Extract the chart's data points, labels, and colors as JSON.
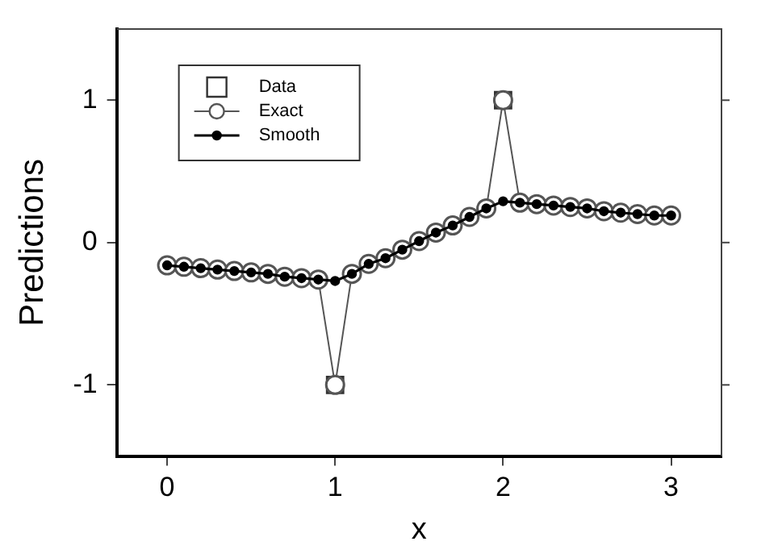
{
  "chart_data": {
    "type": "line",
    "xlabel": "x",
    "ylabel": "Predictions",
    "xlim": [
      -0.3,
      3.3
    ],
    "xticks": [
      0,
      1,
      2,
      3
    ],
    "ylim": [
      -1.5,
      1.5
    ],
    "yticks": [
      -1,
      0,
      1
    ],
    "grid": false,
    "legend": "top left",
    "x": [
      0,
      0.1,
      0.2,
      0.3,
      0.4,
      0.5,
      0.6,
      0.7,
      0.8,
      0.9,
      1,
      1.1,
      1.2,
      1.3,
      1.4,
      1.5,
      1.6,
      1.7,
      1.8,
      1.9,
      2,
      2.1,
      2.2,
      2.3,
      2.4,
      2.5,
      2.6,
      2.7,
      2.8,
      2.9,
      3
    ],
    "series": [
      {
        "name": "Data",
        "type": "scatter",
        "color": "#333333",
        "marker": "square",
        "x": [
          1,
          2
        ],
        "values": [
          -1,
          1
        ]
      },
      {
        "name": "Exact",
        "color": "#555555",
        "marker": "circle",
        "line_style": "solid",
        "values": [
          -0.16,
          -0.17,
          -0.18,
          -0.19,
          -0.2,
          -0.21,
          -0.22,
          -0.24,
          -0.25,
          -0.26,
          -1,
          -0.22,
          -0.15,
          -0.11,
          -0.05,
          0.01,
          0.07,
          0.12,
          0.18,
          0.24,
          1,
          0.28,
          0.27,
          0.26,
          0.25,
          0.24,
          0.22,
          0.21,
          0.2,
          0.19,
          0.19
        ]
      },
      {
        "name": "Smooth",
        "color": "#000000",
        "marker": "circle",
        "line_style": "solid",
        "values": [
          -0.16,
          -0.17,
          -0.18,
          -0.19,
          -0.2,
          -0.21,
          -0.22,
          -0.24,
          -0.25,
          -0.26,
          -0.27,
          -0.22,
          -0.15,
          -0.11,
          -0.05,
          0.01,
          0.07,
          0.12,
          0.18,
          0.24,
          0.29,
          0.28,
          0.27,
          0.26,
          0.25,
          0.24,
          0.22,
          0.21,
          0.2,
          0.19,
          0.19
        ]
      }
    ]
  }
}
